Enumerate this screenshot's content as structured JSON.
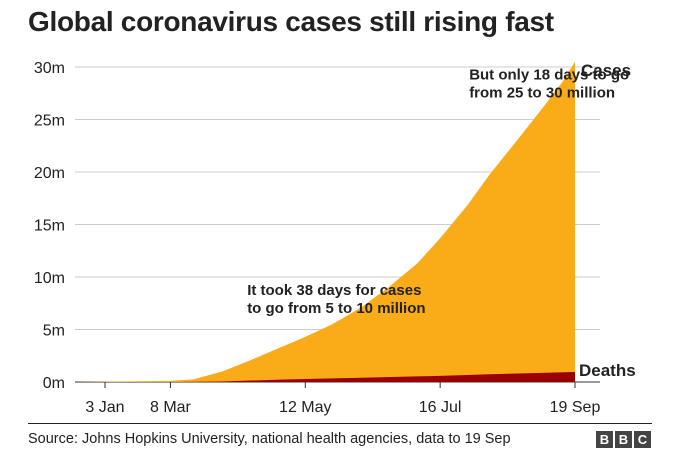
{
  "title": "Global coronavirus cases still rising fast",
  "source": "Source: Johns Hopkins University, national health agencies, data to 19 Sep",
  "logo_text": "BBC",
  "colors": {
    "cases": "#faab18",
    "deaths": "#990000",
    "grid": "#cccccc",
    "text": "#222222"
  },
  "chart_data": {
    "type": "area",
    "title": "Global coronavirus cases still rising fast",
    "xlabel": "",
    "ylabel": "",
    "ylim": [
      0,
      30000000
    ],
    "yticks": [
      0,
      5000000,
      10000000,
      15000000,
      20000000,
      25000000,
      30000000
    ],
    "ytick_labels": [
      "0m",
      "5m",
      "10m",
      "15m",
      "20m",
      "25m",
      "30m"
    ],
    "xlim": [
      "22 Jan",
      "19 Sep"
    ],
    "x_tick_labels": [
      "3 Jan",
      "8 Mar",
      "12 May",
      "16 Jul",
      "19 Sep"
    ],
    "grid": true,
    "series": [
      {
        "name": "Cases",
        "color": "#faab18",
        "x": [
          "22 Jan",
          "8 Mar",
          "19 Mar",
          "2 Apr",
          "16 Apr",
          "30 Apr",
          "12 May",
          "25 May",
          "8 Jun",
          "21 Jun",
          "5 Jul",
          "16 Jul",
          "29 Jul",
          "9 Aug",
          "22 Aug",
          "3 Sep",
          "13 Sep",
          "19 Sep"
        ],
        "values": [
          0,
          100000,
          250000,
          1000000,
          2100000,
          3300000,
          4300000,
          5500000,
          7100000,
          9000000,
          11300000,
          13700000,
          16800000,
          19800000,
          23000000,
          26000000,
          28600000,
          30500000
        ]
      },
      {
        "name": "Deaths",
        "color": "#990000",
        "x": [
          "22 Jan",
          "8 Mar",
          "2 Apr",
          "30 Apr",
          "12 May",
          "8 Jun",
          "5 Jul",
          "16 Jul",
          "9 Aug",
          "3 Sep",
          "19 Sep"
        ],
        "values": [
          0,
          4000,
          50000,
          230000,
          290000,
          400000,
          530000,
          580000,
          730000,
          870000,
          950000
        ]
      }
    ],
    "annotations": [
      {
        "lines": [
          "But only 18 days to go",
          "from 25 to 30 million"
        ],
        "x": "30 Jul",
        "y": 28800000
      },
      {
        "lines": [
          "It took 38 days for cases",
          "to go from 5 to 10 million"
        ],
        "x": "14 Apr",
        "y": 8300000
      }
    ]
  }
}
